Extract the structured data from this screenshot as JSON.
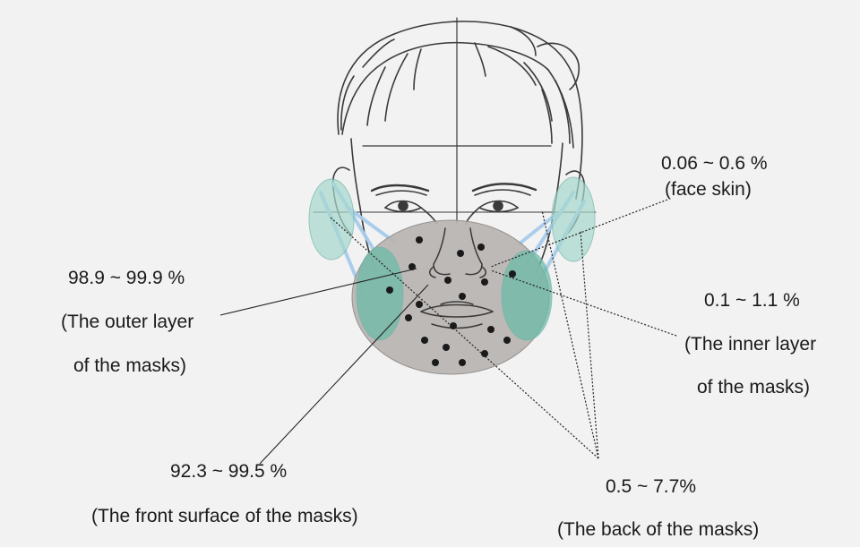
{
  "annotations": {
    "face_skin": {
      "value": "0.06 ~ 0.6 %",
      "desc": "(face skin)"
    },
    "outer_layer": {
      "value": "98.9 ~ 99.9 %",
      "desc_line1": "(The outer layer",
      "desc_line2": "of the masks)"
    },
    "inner_layer": {
      "value": "0.1 ~ 1.1 %",
      "desc_line1": "(The inner layer",
      "desc_line2": "of the masks)"
    },
    "front_surface": {
      "value": "92.3 ~ 99.5 %",
      "desc": "(The front surface of the masks)"
    },
    "back": {
      "value": "0.5 ~ 7.7%",
      "desc": "(The back of the masks)"
    }
  },
  "colors": {
    "background": "#f2f2f2",
    "mask_gray": "#b9b5b3",
    "strap_blue": "#a8ccec",
    "ear_pad_teal": "#7cc7b4",
    "dot": "#1a1a1a",
    "line": "#222222"
  }
}
